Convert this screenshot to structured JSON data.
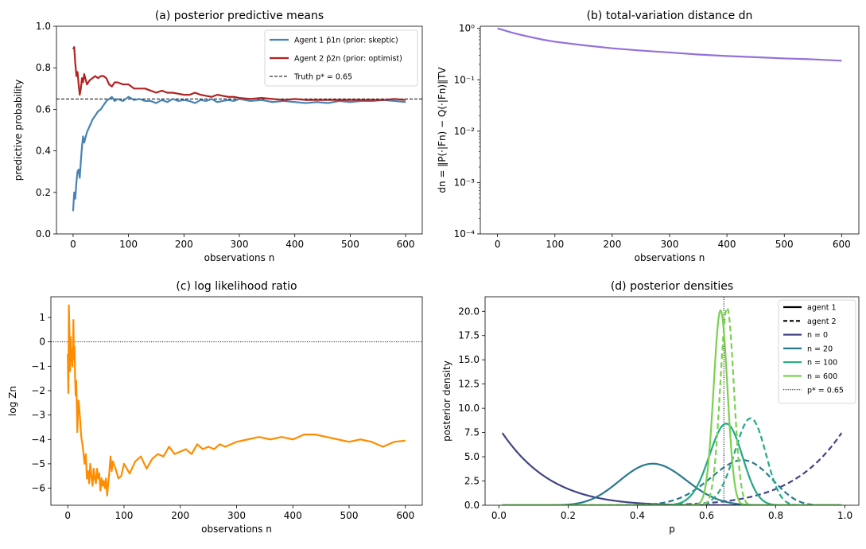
{
  "chart_data": [
    {
      "id": "a",
      "type": "line",
      "title": "(a) posterior predictive means",
      "xlabel": "observations n",
      "ylabel": "predictive probability",
      "xlim": [
        -30,
        630
      ],
      "ylim": [
        0,
        1
      ],
      "xticks": [
        0,
        100,
        200,
        300,
        400,
        500,
        600
      ],
      "yticks": [
        0.0,
        0.2,
        0.4,
        0.6,
        0.8,
        1.0
      ],
      "ytick_labels": [
        "0.0",
        "0.2",
        "0.4",
        "0.6",
        "0.8",
        "1.0"
      ],
      "legend_position": "top-right",
      "hline": {
        "y": 0.65,
        "label": "Truth p* = 0.65",
        "style": "dashed",
        "color": "#000000"
      },
      "series": [
        {
          "name": "Agent 1 p̂1n (prior: skeptic)",
          "color": "#4682b4",
          "x": [
            0,
            2,
            4,
            6,
            8,
            10,
            12,
            14,
            16,
            18,
            20,
            25,
            30,
            35,
            40,
            45,
            50,
            55,
            60,
            65,
            70,
            75,
            80,
            90,
            100,
            110,
            120,
            130,
            140,
            150,
            160,
            170,
            180,
            190,
            200,
            210,
            220,
            230,
            240,
            250,
            260,
            270,
            280,
            290,
            300,
            320,
            340,
            360,
            380,
            400,
            420,
            440,
            460,
            480,
            500,
            520,
            540,
            560,
            580,
            600
          ],
          "y": [
            0.11,
            0.2,
            0.17,
            0.25,
            0.3,
            0.31,
            0.27,
            0.35,
            0.42,
            0.47,
            0.44,
            0.49,
            0.52,
            0.55,
            0.57,
            0.59,
            0.6,
            0.62,
            0.64,
            0.65,
            0.66,
            0.64,
            0.65,
            0.64,
            0.66,
            0.645,
            0.65,
            0.64,
            0.64,
            0.63,
            0.645,
            0.635,
            0.65,
            0.64,
            0.645,
            0.64,
            0.63,
            0.645,
            0.64,
            0.65,
            0.635,
            0.64,
            0.645,
            0.64,
            0.65,
            0.64,
            0.645,
            0.635,
            0.64,
            0.635,
            0.63,
            0.635,
            0.63,
            0.64,
            0.635,
            0.64,
            0.64,
            0.645,
            0.64,
            0.635
          ]
        },
        {
          "name": "Agent 2 p̂2n (prior: optimist)",
          "color": "#b22222",
          "x": [
            0,
            2,
            4,
            6,
            8,
            10,
            12,
            14,
            16,
            18,
            20,
            25,
            30,
            35,
            40,
            45,
            50,
            55,
            60,
            65,
            70,
            75,
            80,
            90,
            100,
            110,
            120,
            130,
            140,
            150,
            160,
            170,
            180,
            190,
            200,
            210,
            220,
            230,
            240,
            250,
            260,
            270,
            280,
            290,
            300,
            320,
            340,
            360,
            380,
            400,
            420,
            440,
            460,
            480,
            500,
            520,
            540,
            560,
            580,
            600
          ],
          "y": [
            0.89,
            0.9,
            0.82,
            0.76,
            0.78,
            0.72,
            0.67,
            0.7,
            0.75,
            0.73,
            0.77,
            0.72,
            0.74,
            0.75,
            0.76,
            0.75,
            0.76,
            0.76,
            0.75,
            0.72,
            0.71,
            0.73,
            0.73,
            0.72,
            0.72,
            0.7,
            0.7,
            0.7,
            0.69,
            0.68,
            0.69,
            0.68,
            0.68,
            0.675,
            0.67,
            0.67,
            0.68,
            0.67,
            0.665,
            0.66,
            0.67,
            0.665,
            0.66,
            0.66,
            0.655,
            0.65,
            0.655,
            0.65,
            0.645,
            0.65,
            0.645,
            0.645,
            0.645,
            0.645,
            0.645,
            0.645,
            0.645,
            0.645,
            0.65,
            0.645
          ]
        }
      ]
    },
    {
      "id": "b",
      "type": "line",
      "title": "(b) total-variation distance dn",
      "xlabel": "observations n",
      "ylabel": "dn = ‖P(·|Fn) − Q(·|Fn)‖TV",
      "yscale": "log",
      "xlim": [
        -30,
        630
      ],
      "ylim": [
        0.0001,
        1.1
      ],
      "xticks": [
        0,
        100,
        200,
        300,
        400,
        500,
        600
      ],
      "yticks": [
        0.0001,
        0.001,
        0.01,
        0.1,
        1
      ],
      "ytick_labels": [
        "10⁻⁴",
        "10⁻³",
        "10⁻²",
        "10⁻¹",
        "10⁰"
      ],
      "series": [
        {
          "name": "dn",
          "color": "#9370db",
          "x": [
            0,
            10,
            20,
            30,
            40,
            60,
            80,
            100,
            150,
            200,
            250,
            300,
            350,
            400,
            450,
            500,
            550,
            600
          ],
          "y": [
            1.0,
            0.93,
            0.86,
            0.8,
            0.75,
            0.67,
            0.6,
            0.55,
            0.47,
            0.41,
            0.37,
            0.34,
            0.31,
            0.29,
            0.275,
            0.26,
            0.25,
            0.235
          ]
        }
      ]
    },
    {
      "id": "c",
      "type": "line",
      "title": "(c) log likelihood ratio",
      "xlabel": "observations n",
      "ylabel": "log Zn",
      "xlim": [
        -30,
        630
      ],
      "ylim": [
        -6.7,
        1.85
      ],
      "xticks": [
        0,
        100,
        200,
        300,
        400,
        500,
        600
      ],
      "yticks": [
        -6,
        -5,
        -4,
        -3,
        -2,
        -1,
        0,
        1
      ],
      "ytick_labels": [
        "−6",
        "−5",
        "−4",
        "−3",
        "−2",
        "−1",
        "0",
        "1"
      ],
      "hline": {
        "y": 0,
        "style": "dotted",
        "color": "#000000"
      },
      "series": [
        {
          "name": "log Zn",
          "color": "#ff8c00",
          "x": [
            0,
            1,
            2,
            3,
            4,
            5,
            6,
            7,
            8,
            9,
            10,
            11,
            12,
            13,
            14,
            15,
            16,
            17,
            18,
            19,
            20,
            22,
            24,
            26,
            28,
            30,
            32,
            34,
            36,
            38,
            40,
            42,
            44,
            46,
            48,
            50,
            52,
            54,
            56,
            58,
            60,
            62,
            64,
            66,
            68,
            70,
            72,
            74,
            76,
            78,
            80,
            85,
            90,
            95,
            100,
            110,
            120,
            130,
            140,
            150,
            160,
            170,
            180,
            190,
            200,
            210,
            220,
            230,
            240,
            250,
            260,
            270,
            280,
            290,
            300,
            320,
            340,
            360,
            380,
            400,
            420,
            440,
            460,
            480,
            500,
            520,
            540,
            560,
            580,
            600
          ],
          "y": [
            -0.5,
            -2.1,
            1.5,
            0.4,
            -1.2,
            0.2,
            -0.8,
            -0.3,
            -1.0,
            -0.6,
            0.9,
            -0.7,
            -0.2,
            -1.5,
            -2.2,
            -1.6,
            -2.5,
            -3.7,
            -3.0,
            -2.4,
            -2.6,
            -3.2,
            -3.9,
            -4.2,
            -4.6,
            -5.0,
            -4.6,
            -5.6,
            -5.3,
            -5.8,
            -5.0,
            -5.5,
            -5.9,
            -5.2,
            -5.6,
            -5.8,
            -5.2,
            -5.6,
            -5.4,
            -6.1,
            -5.6,
            -5.9,
            -5.7,
            -6.0,
            -5.6,
            -6.3,
            -5.8,
            -5.3,
            -4.7,
            -5.3,
            -4.9,
            -5.2,
            -5.6,
            -5.5,
            -5.0,
            -5.4,
            -4.9,
            -4.7,
            -5.2,
            -4.8,
            -4.6,
            -4.7,
            -4.3,
            -4.6,
            -4.5,
            -4.4,
            -4.6,
            -4.2,
            -4.4,
            -4.3,
            -4.4,
            -4.2,
            -4.3,
            -4.2,
            -4.1,
            -4.0,
            -3.9,
            -4.0,
            -3.9,
            -4.0,
            -3.8,
            -3.8,
            -3.9,
            -4.0,
            -4.1,
            -4.0,
            -4.1,
            -4.3,
            -4.1,
            -4.05
          ]
        }
      ]
    },
    {
      "id": "d",
      "type": "line",
      "title": "(d) posterior densities",
      "xlabel": "p",
      "ylabel": "posterior density",
      "xlim": [
        -0.04,
        1.04
      ],
      "ylim": [
        0,
        21.5
      ],
      "xticks": [
        0.0,
        0.2,
        0.4,
        0.6,
        0.8,
        1.0
      ],
      "xtick_labels": [
        "0.0",
        "0.2",
        "0.4",
        "0.6",
        "0.8",
        "1.0"
      ],
      "yticks": [
        0,
        2.5,
        5,
        7.5,
        10,
        12.5,
        15,
        17.5,
        20
      ],
      "ytick_labels": [
        "0.0",
        "2.5",
        "5.0",
        "7.5",
        "10.0",
        "12.5",
        "15.0",
        "17.5",
        "20.0"
      ],
      "vline": {
        "x": 0.65,
        "label": "p* = 0.65",
        "style": "dotted",
        "color": "#000000"
      },
      "legend_position": "top-right",
      "legend": [
        {
          "label": "agent 1",
          "color": "#000000",
          "style": "solid"
        },
        {
          "label": "agent 2",
          "color": "#000000",
          "style": "dashed"
        },
        {
          "label": "n = 0",
          "color": "#414487",
          "style": "solid"
        },
        {
          "label": "n = 20",
          "color": "#2a788e",
          "style": "solid"
        },
        {
          "label": "n = 100",
          "color": "#22a884",
          "style": "solid"
        },
        {
          "label": "n = 600",
          "color": "#7ad151",
          "style": "solid"
        },
        {
          "label": "p* = 0.65",
          "color": "#000000",
          "style": "dotted"
        }
      ],
      "series": [
        {
          "name": "agent 1, n = 0",
          "color": "#414487",
          "style": "solid",
          "beta": [
            1,
            8
          ]
        },
        {
          "name": "agent 2, n = 0",
          "color": "#414487",
          "style": "dashed",
          "beta": [
            8,
            1
          ]
        },
        {
          "name": "agent 1, n = 20",
          "color": "#2a788e",
          "style": "solid",
          "beta": [
            13,
            16
          ]
        },
        {
          "name": "agent 2, n = 20",
          "color": "#2a788e",
          "style": "dashed",
          "beta": [
            20,
            9
          ]
        },
        {
          "name": "agent 1, n = 100",
          "color": "#22a884",
          "style": "solid",
          "beta": [
            66,
            35
          ]
        },
        {
          "name": "agent 2, n = 100",
          "color": "#22a884",
          "style": "dashed",
          "beta": [
            73,
            28
          ]
        },
        {
          "name": "agent 1, n = 600",
          "color": "#7ad151",
          "style": "solid",
          "beta": [
            375,
            211
          ]
        },
        {
          "name": "agent 2, n = 600",
          "color": "#7ad151",
          "style": "dashed",
          "beta": [
            386,
            200
          ]
        }
      ]
    }
  ]
}
